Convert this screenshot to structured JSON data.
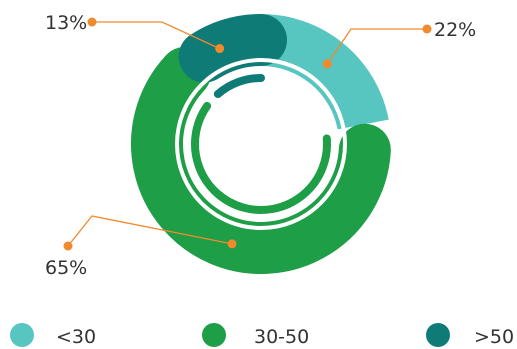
{
  "chart_data": {
    "type": "pie",
    "title": "",
    "series": [
      {
        "name": "<30",
        "value": 22,
        "label": "22%",
        "color": "#57C5C0"
      },
      {
        "name": "30-50",
        "value": 65,
        "label": "65%",
        "color": "#1E9E47"
      },
      {
        "name": ">50",
        "value": 13,
        "label": "13%",
        "color": "#0F7B77"
      }
    ],
    "callout_color": "#F08A2C",
    "legend_position": "bottom"
  }
}
